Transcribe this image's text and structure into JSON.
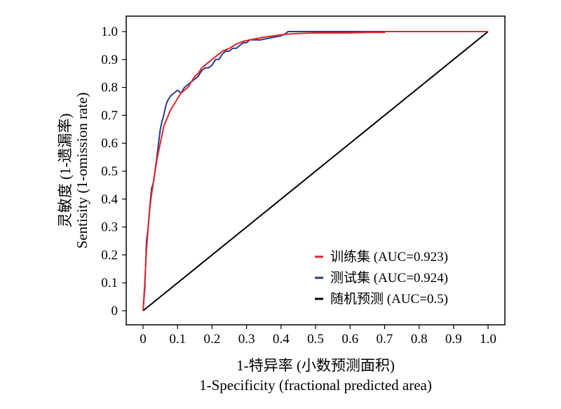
{
  "chart_data": {
    "type": "line",
    "xlabel": "1-特异率 (小数预测面积)",
    "xlabel_sub": "1-Specificity (fractional predicted area)",
    "ylabel": "灵敏度 (1-遗漏率)",
    "ylabel_sub": "Sentisity (1-omission rate)",
    "xlim": [
      0,
      1
    ],
    "ylim": [
      0,
      1
    ],
    "x_ticks": [
      "0",
      "0.1",
      "0.2",
      "0.3",
      "0.4",
      "0.5",
      "0.6",
      "0.7",
      "0.8",
      "0.9",
      "1.0"
    ],
    "y_ticks": [
      "0",
      "0.1",
      "0.2",
      "0.3",
      "0.4",
      "0.5",
      "0.6",
      "0.7",
      "0.8",
      "0.9",
      "1.0"
    ],
    "grid": false,
    "legend_position": "bottom-right",
    "series": [
      {
        "name": "训练集 (AUC=0.923)",
        "color": "#e0262b",
        "x": [
          0,
          0.005,
          0.01,
          0.015,
          0.02,
          0.025,
          0.03,
          0.035,
          0.04,
          0.045,
          0.05,
          0.055,
          0.06,
          0.07,
          0.08,
          0.09,
          0.1,
          0.11,
          0.12,
          0.13,
          0.14,
          0.15,
          0.16,
          0.17,
          0.18,
          0.19,
          0.2,
          0.21,
          0.22,
          0.23,
          0.24,
          0.25,
          0.27,
          0.29,
          0.31,
          0.33,
          0.35,
          0.38,
          0.41,
          0.45,
          0.5,
          0.55,
          0.6,
          0.65,
          0.7,
          0.7,
          1.0
        ],
        "y": [
          0,
          0.1,
          0.22,
          0.3,
          0.37,
          0.42,
          0.46,
          0.5,
          0.54,
          0.57,
          0.6,
          0.63,
          0.66,
          0.69,
          0.72,
          0.74,
          0.76,
          0.78,
          0.79,
          0.8,
          0.82,
          0.84,
          0.85,
          0.87,
          0.88,
          0.89,
          0.9,
          0.91,
          0.92,
          0.93,
          0.935,
          0.94,
          0.955,
          0.965,
          0.97,
          0.975,
          0.98,
          0.985,
          0.99,
          0.993,
          0.995,
          0.995,
          0.995,
          0.997,
          0.997,
          1.0,
          1.0
        ]
      },
      {
        "name": "测试集 (AUC=0.924)",
        "color": "#2b3a8f",
        "x": [
          0,
          0.005,
          0.01,
          0.015,
          0.02,
          0.025,
          0.03,
          0.04,
          0.045,
          0.05,
          0.055,
          0.06,
          0.065,
          0.07,
          0.075,
          0.08,
          0.09,
          0.1,
          0.11,
          0.12,
          0.13,
          0.14,
          0.15,
          0.16,
          0.17,
          0.18,
          0.19,
          0.2,
          0.21,
          0.22,
          0.23,
          0.24,
          0.25,
          0.26,
          0.27,
          0.28,
          0.29,
          0.3,
          0.31,
          0.32,
          0.34,
          0.36,
          0.38,
          0.4,
          0.41,
          0.42,
          0.5,
          0.6,
          0.7,
          0.8,
          0.9,
          1.0
        ],
        "y": [
          0,
          0.08,
          0.25,
          0.3,
          0.38,
          0.44,
          0.46,
          0.55,
          0.6,
          0.65,
          0.68,
          0.7,
          0.73,
          0.75,
          0.76,
          0.77,
          0.78,
          0.79,
          0.78,
          0.8,
          0.81,
          0.82,
          0.83,
          0.84,
          0.86,
          0.87,
          0.87,
          0.88,
          0.9,
          0.9,
          0.92,
          0.93,
          0.93,
          0.94,
          0.94,
          0.95,
          0.96,
          0.96,
          0.97,
          0.97,
          0.97,
          0.975,
          0.98,
          0.985,
          0.99,
          1.0,
          1.0,
          1.0,
          1.0,
          1.0,
          1.0,
          1.0
        ]
      },
      {
        "name": "随机预测 (AUC=0.5)",
        "color": "#000000",
        "x": [
          0,
          1
        ],
        "y": [
          0,
          1
        ]
      }
    ]
  }
}
